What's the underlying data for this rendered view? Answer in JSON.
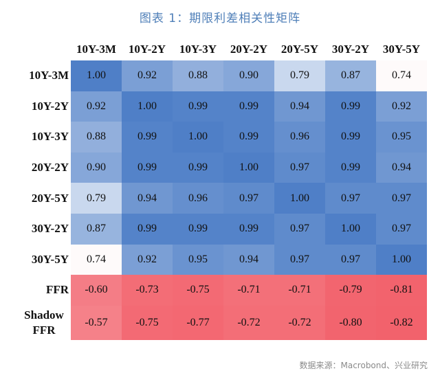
{
  "title": "图表 1：期限利差相关性矩阵",
  "source": "数据来源：Macrobond、兴业研究",
  "chart_data": {
    "type": "heatmap",
    "title": "图表 1：期限利差相关性矩阵",
    "columns": [
      "10Y-3M",
      "10Y-2Y",
      "10Y-3Y",
      "20Y-2Y",
      "20Y-5Y",
      "30Y-2Y",
      "30Y-5Y"
    ],
    "rows": [
      {
        "label": "10Y-3M",
        "values": [
          1.0,
          0.92,
          0.88,
          0.9,
          0.79,
          0.87,
          0.74
        ]
      },
      {
        "label": "10Y-2Y",
        "values": [
          0.92,
          1.0,
          0.99,
          0.99,
          0.94,
          0.99,
          0.92
        ]
      },
      {
        "label": "10Y-3Y",
        "values": [
          0.88,
          0.99,
          1.0,
          0.99,
          0.96,
          0.99,
          0.95
        ]
      },
      {
        "label": "20Y-2Y",
        "values": [
          0.9,
          0.99,
          0.99,
          1.0,
          0.97,
          0.99,
          0.94
        ]
      },
      {
        "label": "20Y-5Y",
        "values": [
          0.79,
          0.94,
          0.96,
          0.97,
          1.0,
          0.97,
          0.97
        ]
      },
      {
        "label": "30Y-2Y",
        "values": [
          0.87,
          0.99,
          0.99,
          0.99,
          0.97,
          1.0,
          0.97
        ]
      },
      {
        "label": "30Y-5Y",
        "values": [
          0.74,
          0.92,
          0.95,
          0.94,
          0.97,
          0.97,
          1.0
        ]
      },
      {
        "label": "FFR",
        "values": [
          -0.6,
          -0.73,
          -0.75,
          -0.71,
          -0.71,
          -0.79,
          -0.81
        ]
      },
      {
        "label": "Shadow FFR",
        "values": [
          -0.57,
          -0.75,
          -0.77,
          -0.72,
          -0.72,
          -0.8,
          -0.82
        ]
      }
    ],
    "color_scale": {
      "negative": "#f2616b",
      "neutral": "#ffffff",
      "positive": "#4f7fc7"
    }
  }
}
